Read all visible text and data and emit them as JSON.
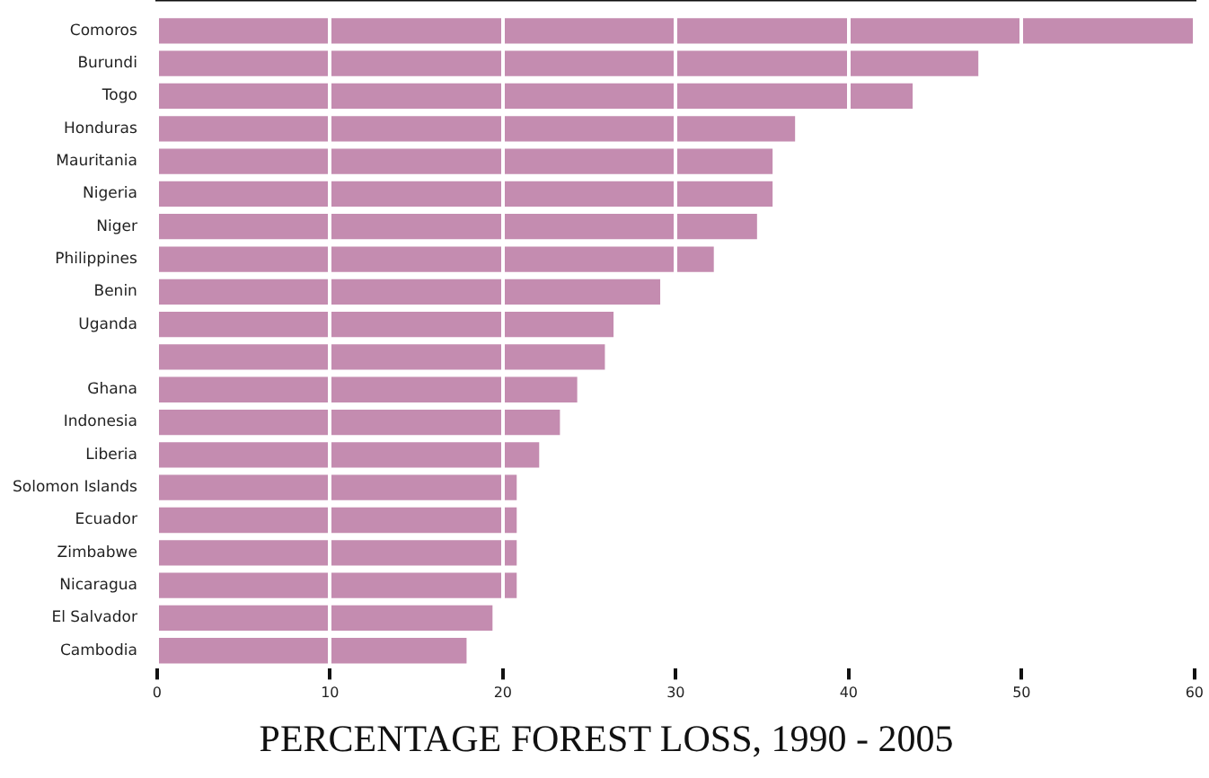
{
  "chart_data": {
    "type": "bar",
    "orientation": "horizontal",
    "title": "PERCENTAGE FOREST LOSS, 1990 - 2005",
    "categories": [
      "Comoros",
      "Burundi",
      "Togo",
      "Honduras",
      "Mauritania",
      "Nigeria",
      "Niger",
      "Philippines",
      "Benin",
      "Uganda",
      null,
      "Ghana",
      "Indonesia",
      "Liberia",
      "Solomon Islands",
      "Ecuador",
      "Zimbabwe",
      "Nicaragua",
      "El Salvador",
      "Cambodia"
    ],
    "values": [
      60,
      47.5,
      43.7,
      36.9,
      35.6,
      35.6,
      34.7,
      32.2,
      29.1,
      26.4,
      25.9,
      24.3,
      23.3,
      22.1,
      20.8,
      20.8,
      20.8,
      20.8,
      19.4,
      17.9
    ],
    "color": "#c48cb0",
    "xlim": [
      0,
      60
    ],
    "xticks": [
      0,
      10,
      20,
      30,
      40,
      50,
      60
    ],
    "grid": "x",
    "legend": false
  }
}
